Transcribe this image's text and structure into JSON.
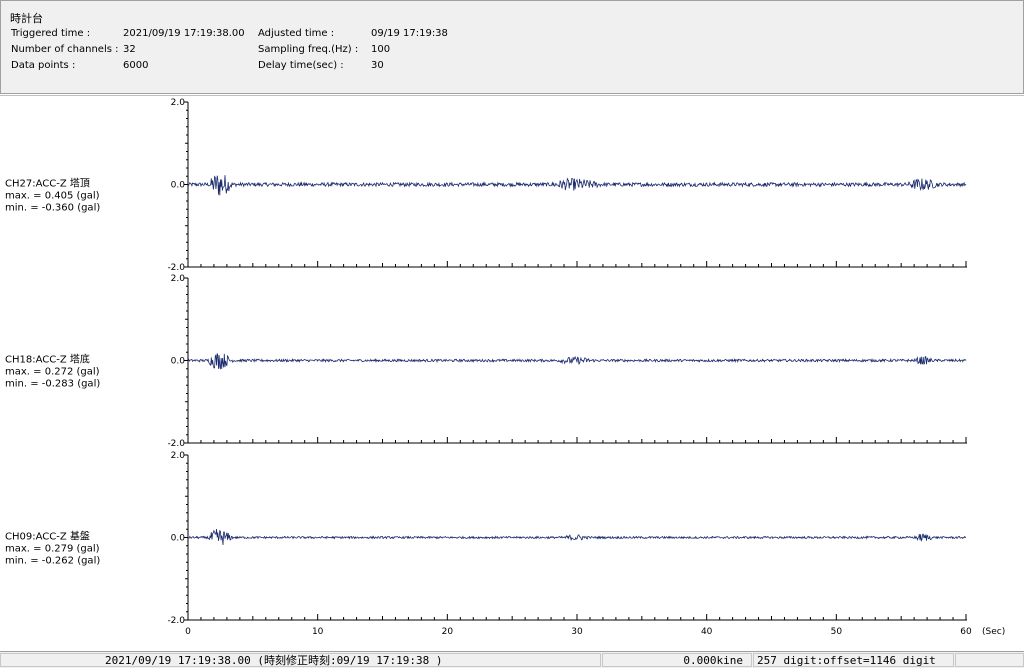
{
  "header": {
    "title": "時計台",
    "triggered_label": "Triggered time :",
    "triggered_value": "2021/09/19 17:19:38.00",
    "channels_label": "Number of channels :",
    "channels_value": "32",
    "datapoints_label": "Data points :",
    "datapoints_value": "6000",
    "adjusted_label": "Adjusted time :",
    "adjusted_value": "09/19 17:19:38",
    "sampling_label": "Sampling freq.(Hz) :",
    "sampling_value": "100",
    "delay_label": "Delay time(sec) :",
    "delay_value": "30"
  },
  "chart_data": {
    "type": "line",
    "xlabel": "(Sec)",
    "xlim": [
      0,
      60
    ],
    "x_ticks": [
      "0",
      "10",
      "20",
      "30",
      "40",
      "50",
      "60"
    ],
    "ylim": [
      -2.0,
      2.0
    ],
    "y_ticks": [
      "2.0",
      "0.0",
      "-2.0"
    ],
    "grid": false,
    "line_color": "#1a2a6c",
    "channels": [
      {
        "name": "CH27:ACC-Z 塔頂",
        "max_text": "max. = 0.405 (gal)",
        "min_text": "min. = -0.360 (gal)",
        "max": 0.405,
        "min": -0.36,
        "bursts": [
          [
            1.6,
            3.5,
            0.36
          ],
          [
            28.0,
            32.0,
            0.14
          ],
          [
            55.5,
            58.0,
            0.14
          ]
        ],
        "noise": 0.045
      },
      {
        "name": "CH18:ACC-Z 塔底",
        "max_text": "max. = 0.272 (gal)",
        "min_text": "min. = -0.283 (gal)",
        "max": 0.272,
        "min": -0.283,
        "bursts": [
          [
            1.5,
            3.5,
            0.25
          ],
          [
            28.5,
            31.5,
            0.08
          ],
          [
            56.0,
            57.5,
            0.1
          ]
        ],
        "noise": 0.03
      },
      {
        "name": "CH09:ACC-Z 基盤",
        "max_text": "max. = 0.279 (gal)",
        "min_text": "min. = -0.262 (gal)",
        "max": 0.279,
        "min": -0.262,
        "bursts": [
          [
            1.5,
            3.5,
            0.25
          ],
          [
            29.0,
            31.0,
            0.07
          ],
          [
            56.0,
            57.5,
            0.1
          ]
        ],
        "noise": 0.025
      }
    ]
  },
  "status": {
    "datetime": "2021/09/19 17:19:38.00  (時刻修正時刻:09/19 17:19:38  )",
    "velocity": "0.000kine",
    "digit": "257 digit:offset=1146 digit"
  }
}
